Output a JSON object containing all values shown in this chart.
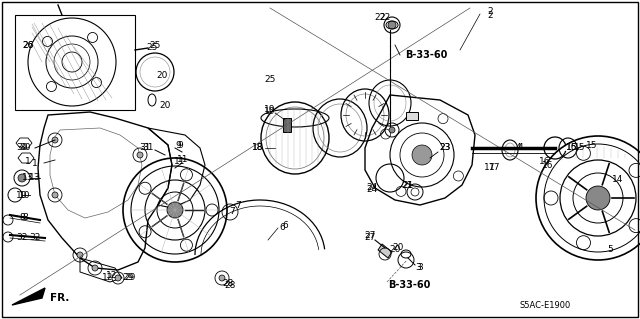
{
  "fig_width": 6.4,
  "fig_height": 3.19,
  "dpi": 100,
  "bg_color": "#ffffff",
  "diagram_code": "S5AC-E1900",
  "fr_label": "FR."
}
